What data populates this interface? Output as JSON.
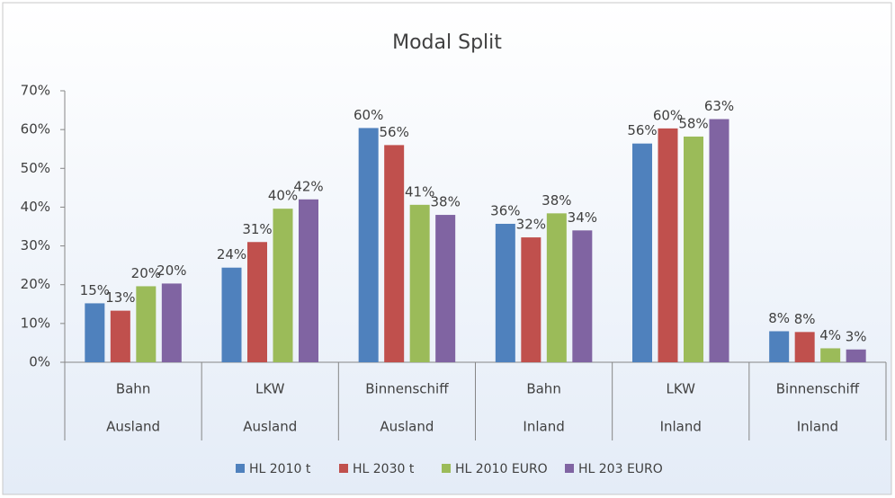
{
  "chart_data": {
    "type": "bar",
    "title": "Modal Split",
    "categories": [
      "Bahn",
      "LKW",
      "Binnenschiff",
      "Bahn",
      "LKW",
      "Binnenschiff"
    ],
    "category_groups": [
      "Ausland",
      "Ausland",
      "Ausland",
      "Inland",
      "Inland",
      "Inland"
    ],
    "series": [
      {
        "name": "HL 2010 t",
        "color": "#4f81bd",
        "values": [
          15.2,
          24.4,
          60.4,
          35.7,
          56.4,
          8.0
        ],
        "value_labels": [
          "15%",
          "24%",
          "60%",
          "36%",
          "56%",
          "8%"
        ]
      },
      {
        "name": "HL 2030 t",
        "color": "#c0504d",
        "values": [
          13.3,
          31.0,
          56.0,
          32.2,
          60.3,
          7.8
        ],
        "value_labels": [
          "13%",
          "31%",
          "56%",
          "32%",
          "60%",
          "8%"
        ]
      },
      {
        "name": "HL 2010 EURO",
        "color": "#9bbb59",
        "values": [
          19.6,
          39.6,
          40.6,
          38.4,
          58.2,
          3.6
        ],
        "value_labels": [
          "20%",
          "40%",
          "41%",
          "38%",
          "58%",
          "4%"
        ]
      },
      {
        "name": "HL 203 EURO",
        "color": "#8064a2",
        "values": [
          20.3,
          42.0,
          38.0,
          34.0,
          62.7,
          3.3
        ],
        "value_labels": [
          "20%",
          "42%",
          "38%",
          "34%",
          "63%",
          "3%"
        ]
      }
    ],
    "ylim": [
      0,
      70
    ],
    "yticks": [
      {
        "value": 0,
        "label": "0%"
      },
      {
        "value": 10,
        "label": "10%"
      },
      {
        "value": 20,
        "label": "20%"
      },
      {
        "value": 30,
        "label": "30%"
      },
      {
        "value": 40,
        "label": "40%"
      },
      {
        "value": 50,
        "label": "50%"
      },
      {
        "value": 60,
        "label": "60%"
      },
      {
        "value": 70,
        "label": "70%"
      }
    ],
    "grid": false,
    "legend": "bottom"
  }
}
